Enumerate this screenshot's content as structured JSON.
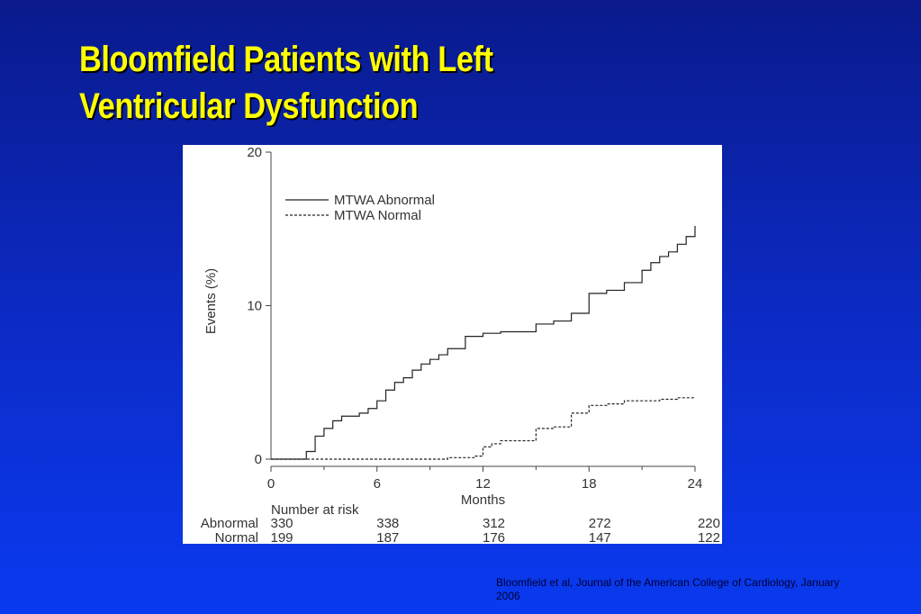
{
  "slide": {
    "title_line1": "Bloomfield Patients with Left",
    "title_line2": "Ventricular Dysfunction",
    "citation": "Bloomfield et al, Journal of the American College of Cardiology, January 2006",
    "colors": {
      "background": "#0c2cc8",
      "title": "#ffff00",
      "panel": "#ffffff"
    }
  },
  "chart_data": {
    "type": "line",
    "xlabel": "Months",
    "ylabel": "Events (%)",
    "xlim": [
      0,
      24
    ],
    "ylim": [
      0,
      20
    ],
    "x_ticks": [
      "0",
      "6",
      "12",
      "18",
      "24"
    ],
    "y_ticks": [
      "0",
      "10",
      "20"
    ],
    "legend": {
      "placement": "top-left",
      "entries": [
        "MTWA Abnormal",
        "MTWA Normal"
      ]
    },
    "series": [
      {
        "name": "MTWA Abnormal",
        "style": "solid",
        "x": [
          0,
          2,
          2.5,
          3,
          3.5,
          4,
          5,
          5.5,
          6,
          6.5,
          7,
          7.5,
          8,
          8.5,
          9,
          9.5,
          10,
          11,
          12,
          13,
          14,
          15,
          16,
          17,
          18,
          19,
          20,
          20.5,
          21,
          21.5,
          22,
          22.5,
          23,
          23.5,
          24
        ],
        "y": [
          0,
          0.5,
          1.5,
          2.0,
          2.5,
          2.8,
          3.0,
          3.3,
          3.8,
          4.5,
          5.0,
          5.3,
          5.8,
          6.2,
          6.5,
          6.8,
          7.2,
          8.0,
          8.2,
          8.3,
          8.3,
          8.8,
          9.0,
          9.5,
          10.8,
          11.0,
          11.5,
          11.5,
          12.3,
          12.8,
          13.2,
          13.5,
          14.0,
          14.5,
          15.2
        ]
      },
      {
        "name": "MTWA Normal",
        "style": "dashed",
        "x": [
          0,
          6,
          9,
          10,
          11,
          11.5,
          12,
          12.5,
          13,
          14,
          15,
          16,
          17,
          18,
          19,
          20,
          21,
          22,
          23,
          24
        ],
        "y": [
          0,
          0,
          0,
          0.1,
          0.1,
          0.2,
          0.8,
          1.0,
          1.2,
          1.2,
          2.0,
          2.1,
          3.0,
          3.5,
          3.6,
          3.8,
          3.8,
          3.9,
          4.0,
          4.0
        ]
      }
    ],
    "risk_table": {
      "heading": "Number at risk",
      "rows": [
        {
          "label": "Abnormal",
          "values": [
            "330",
            "338",
            "312",
            "272",
            "220"
          ]
        },
        {
          "label": "Normal",
          "values": [
            "199",
            "187",
            "176",
            "147",
            "122"
          ]
        }
      ]
    }
  }
}
